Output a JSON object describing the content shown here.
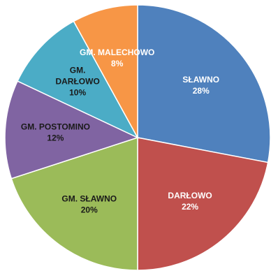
{
  "chart_data": {
    "type": "pie",
    "start_angle_deg": 0,
    "direction": "clockwise",
    "legend": "none",
    "slices": [
      {
        "label": [
          "SŁAWNO"
        ],
        "value": 28,
        "display": "28%",
        "color": "#4f81bd"
      },
      {
        "label": [
          "DARŁOWO"
        ],
        "value": 22,
        "display": "22%",
        "color": "#c0504d"
      },
      {
        "label": [
          "GM. SŁAWNO"
        ],
        "value": 20,
        "display": "20%",
        "color": "#9bbb59",
        "dark_text": true
      },
      {
        "label": [
          "GM. POSTOMINO"
        ],
        "value": 12,
        "display": "12%",
        "color": "#8064a2",
        "dark_text": true
      },
      {
        "label": [
          "GM.",
          "DARŁOWO"
        ],
        "value": 10,
        "display": "10%",
        "color": "#4bacc6",
        "dark_text": true
      },
      {
        "label": [
          "GM. MALECHOWO"
        ],
        "value": 8,
        "display": "8%",
        "color": "#f79646"
      }
    ]
  }
}
